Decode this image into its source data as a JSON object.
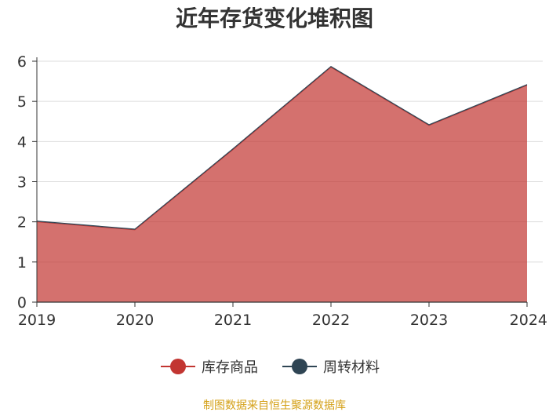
{
  "chart_data": {
    "type": "area",
    "stacked": true,
    "title": "近年存货变化堆积图",
    "x": [
      "2019",
      "2020",
      "2021",
      "2022",
      "2023",
      "2024"
    ],
    "ylim": [
      0,
      6
    ],
    "yticks": [
      "0",
      "1",
      "2",
      "3",
      "4",
      "5",
      "6"
    ],
    "grid": true,
    "legend_position": "bottom",
    "series": [
      {
        "name": "库存商品",
        "values": [
          2.0,
          1.8,
          3.8,
          5.85,
          4.4,
          5.4
        ],
        "color": "#c23531"
      },
      {
        "name": "周转材料",
        "values": [
          0.02,
          0.02,
          0.02,
          0.02,
          0.02,
          0.02
        ],
        "color": "#2f4554"
      }
    ]
  },
  "source_text": "制图数据来自恒生聚源数据库"
}
